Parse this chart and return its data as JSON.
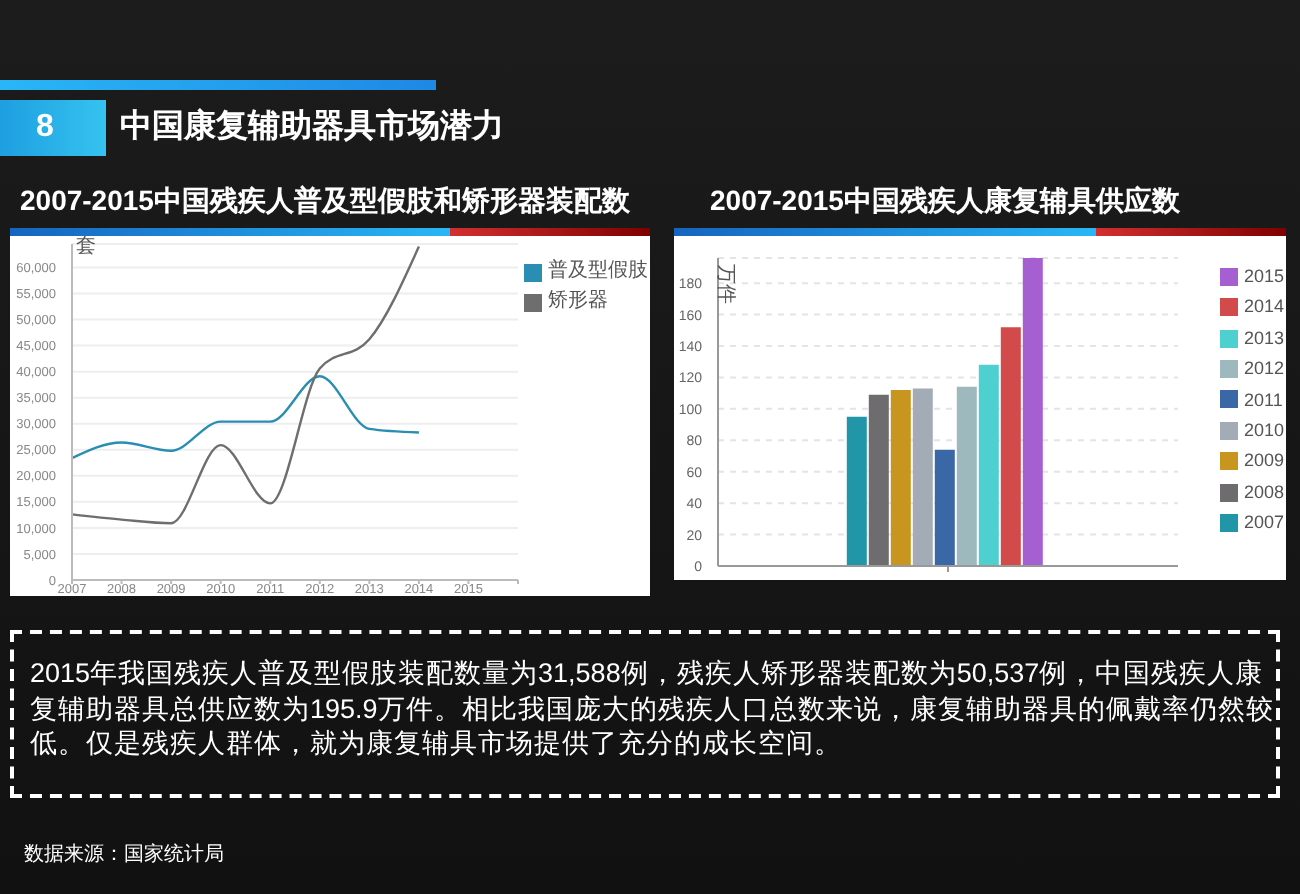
{
  "chart_data": [
    {
      "type": "other",
      "title": "中国康复辅助器具市场潜力",
      "annotations": [
        "8"
      ]
    },
    {
      "type": "line",
      "title": "2007-2015中国残疾人普及型假肢和矫形器装配数",
      "ylabel": "套",
      "x": [
        2007,
        2008,
        2009,
        2010,
        2011,
        2012,
        2013,
        2014
      ],
      "series": [
        {
          "name": "普及型假肢",
          "color": "#2a8db2",
          "values": [
            23400,
            26400,
            24800,
            30400,
            30400,
            39100,
            29000,
            28300
          ]
        },
        {
          "name": "矫形器",
          "color": "#6e6e6e",
          "values": [
            12600,
            11600,
            10900,
            25900,
            14700,
            40600,
            46200,
            64000
          ]
        }
      ],
      "xlim": [
        2007,
        2016
      ],
      "xticks": [
        2007,
        2008,
        2009,
        2010,
        2011,
        2012,
        2013,
        2014,
        2015,
        {
          "value": 2016,
          "label": null
        }
      ],
      "ylim": [
        0,
        64500
      ],
      "yticks": [
        0,
        {
          "value": 5000,
          "label": "5,000"
        },
        {
          "value": 10000,
          "label": "10,000"
        },
        {
          "value": 15000,
          "label": "15,000"
        },
        {
          "value": 20000,
          "label": "20,000"
        },
        {
          "value": 25000,
          "label": "25,000"
        },
        {
          "value": 30000,
          "label": "30,000"
        },
        {
          "value": 35000,
          "label": "35,000"
        },
        {
          "value": 40000,
          "label": "40,000"
        },
        {
          "value": 45000,
          "label": "45,000"
        },
        {
          "value": 50000,
          "label": "50,000"
        },
        {
          "value": 55000,
          "label": "55,000"
        },
        {
          "value": 60000,
          "label": "60,000"
        }
      ],
      "grid": "y",
      "legend": "top right",
      "marker": "none"
    },
    {
      "type": "bar",
      "title": "2007-2015中国残疾人康复辅具供应数",
      "ylabel": "万件",
      "categories": [
        null
      ],
      "series": [
        {
          "name": "2007",
          "color": "#2196a8",
          "values": [
            95
          ]
        },
        {
          "name": "2008",
          "color": "#6e6c6e",
          "values": [
            109
          ]
        },
        {
          "name": "2009",
          "color": "#c8961e",
          "values": [
            112
          ]
        },
        {
          "name": "2010",
          "color": "#a3acb6",
          "values": [
            113
          ]
        },
        {
          "name": "2011",
          "color": "#3a68a6",
          "values": [
            74
          ]
        },
        {
          "name": "2012",
          "color": "#9db9be",
          "values": [
            114
          ]
        },
        {
          "name": "2013",
          "color": "#4ecfd0",
          "values": [
            128
          ]
        },
        {
          "name": "2014",
          "color": "#d24a4a",
          "values": [
            152
          ]
        },
        {
          "name": "2015",
          "color": "#a65fd0",
          "values": [
            196
          ]
        }
      ],
      "ylim": [
        0,
        196
      ],
      "yticks": [
        0,
        20,
        40,
        60,
        80,
        100,
        120,
        140,
        160,
        180
      ],
      "grid": "y",
      "legend": "right"
    },
    {
      "type": "other",
      "annotations": [
        "2015年我国残疾人普及型假肢装配数量为31,588例，残疾人矫形器装配数为50,537例，中国残疾人康复辅助器具总供应数为195.9万件。相比我国庞大的残疾人口总数来说，康复辅助器具的佩戴率仍然较低。仅是残疾人群体，就为康复辅具市场提供了充分的成长空间。",
        "数据来源：国家统计局"
      ]
    }
  ]
}
